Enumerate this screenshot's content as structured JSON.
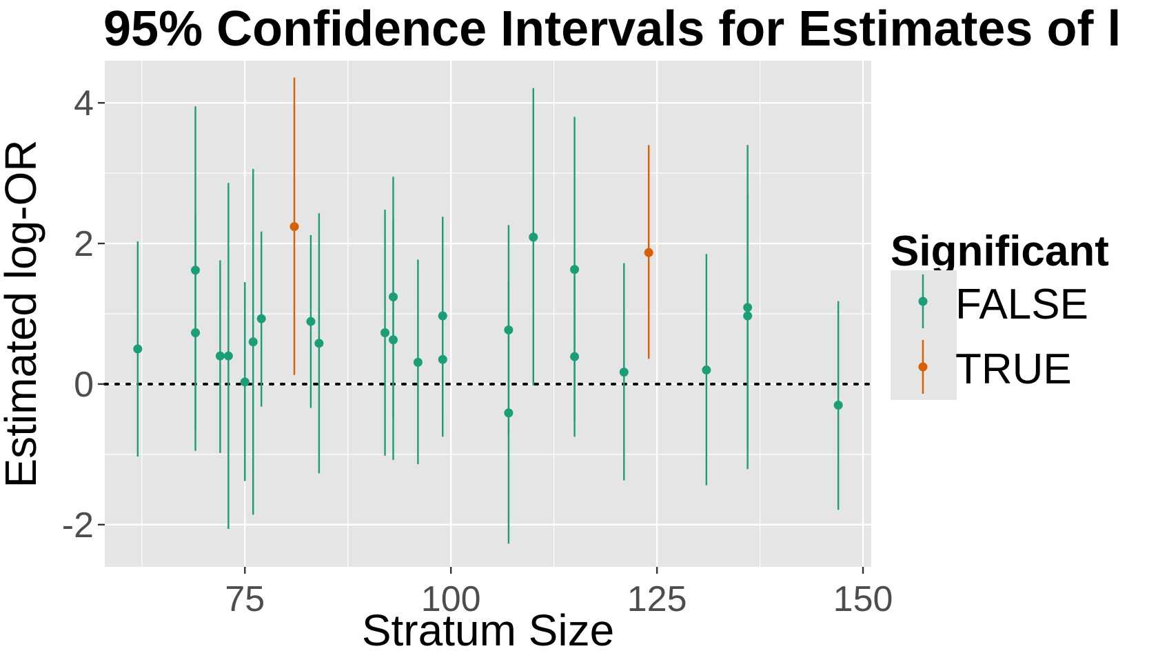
{
  "chart_data": {
    "type": "scatter",
    "title": "95% Confidence Intervals for Estimates of l",
    "xlabel": "Stratum Size",
    "ylabel": "Estimated log-OR",
    "xlim": [
      58,
      151
    ],
    "ylim": [
      -2.6,
      4.6
    ],
    "x_ticks": [
      75,
      100,
      125,
      150
    ],
    "y_ticks": [
      -2,
      0,
      2,
      4
    ],
    "reference_line": {
      "y": 0,
      "style": "dotted"
    },
    "legend": {
      "title": "Significant",
      "position": "right",
      "entries": [
        {
          "label": "FALSE",
          "color": "#1b9e77"
        },
        {
          "label": "TRUE",
          "color": "#d95f02"
        }
      ]
    },
    "colors": {
      "FALSE": "#1b9e77",
      "TRUE": "#d95f02",
      "panel": "#e5e5e5",
      "grid": "#ffffff"
    },
    "points": [
      {
        "x": 62,
        "y": 0.5,
        "lower": -1.03,
        "upper": 2.03,
        "significant": "FALSE"
      },
      {
        "x": 69,
        "y": 1.62,
        "lower": -0.65,
        "upper": 3.95,
        "significant": "FALSE"
      },
      {
        "x": 69,
        "y": 0.73,
        "lower": -0.95,
        "upper": 2.4,
        "significant": "FALSE"
      },
      {
        "x": 72,
        "y": 0.4,
        "lower": -0.98,
        "upper": 1.76,
        "significant": "FALSE"
      },
      {
        "x": 73,
        "y": 0.4,
        "lower": -2.06,
        "upper": 2.86,
        "significant": "FALSE"
      },
      {
        "x": 75,
        "y": 0.03,
        "lower": -1.38,
        "upper": 1.45,
        "significant": "FALSE"
      },
      {
        "x": 76,
        "y": 0.6,
        "lower": -1.86,
        "upper": 3.06,
        "significant": "FALSE"
      },
      {
        "x": 77,
        "y": 0.93,
        "lower": -0.32,
        "upper": 2.17,
        "significant": "FALSE"
      },
      {
        "x": 81,
        "y": 2.24,
        "lower": 0.13,
        "upper": 4.36,
        "significant": "TRUE"
      },
      {
        "x": 83,
        "y": 0.89,
        "lower": -0.34,
        "upper": 2.12,
        "significant": "FALSE"
      },
      {
        "x": 84,
        "y": 0.58,
        "lower": -1.27,
        "upper": 2.43,
        "significant": "FALSE"
      },
      {
        "x": 92,
        "y": 0.73,
        "lower": -1.02,
        "upper": 2.48,
        "significant": "FALSE"
      },
      {
        "x": 93,
        "y": 1.24,
        "lower": -0.47,
        "upper": 2.95,
        "significant": "FALSE"
      },
      {
        "x": 93,
        "y": 0.63,
        "lower": -1.08,
        "upper": 2.34,
        "significant": "FALSE"
      },
      {
        "x": 96,
        "y": 0.31,
        "lower": -1.14,
        "upper": 1.77,
        "significant": "FALSE"
      },
      {
        "x": 99,
        "y": 0.97,
        "lower": -0.43,
        "upper": 2.38,
        "significant": "FALSE"
      },
      {
        "x": 99,
        "y": 0.35,
        "lower": -0.75,
        "upper": 1.45,
        "significant": "FALSE"
      },
      {
        "x": 107,
        "y": 0.77,
        "lower": -0.72,
        "upper": 2.26,
        "significant": "FALSE"
      },
      {
        "x": 107,
        "y": -0.41,
        "lower": -2.27,
        "upper": 1.45,
        "significant": "FALSE"
      },
      {
        "x": 110,
        "y": 2.09,
        "lower": -0.02,
        "upper": 4.21,
        "significant": "FALSE"
      },
      {
        "x": 115,
        "y": 1.63,
        "lower": -0.54,
        "upper": 3.8,
        "significant": "FALSE"
      },
      {
        "x": 115,
        "y": 0.39,
        "lower": -0.75,
        "upper": 1.53,
        "significant": "FALSE"
      },
      {
        "x": 121,
        "y": 0.17,
        "lower": -1.37,
        "upper": 1.72,
        "significant": "FALSE"
      },
      {
        "x": 124,
        "y": 1.87,
        "lower": 0.36,
        "upper": 3.4,
        "significant": "TRUE"
      },
      {
        "x": 131,
        "y": 0.2,
        "lower": -1.44,
        "upper": 1.85,
        "significant": "FALSE"
      },
      {
        "x": 136,
        "y": 1.09,
        "lower": -0.92,
        "upper": 3.4,
        "significant": "FALSE"
      },
      {
        "x": 136,
        "y": 0.97,
        "lower": -1.21,
        "upper": 2.7,
        "significant": "FALSE"
      },
      {
        "x": 147,
        "y": -0.3,
        "lower": -1.79,
        "upper": 1.18,
        "significant": "FALSE"
      }
    ]
  }
}
